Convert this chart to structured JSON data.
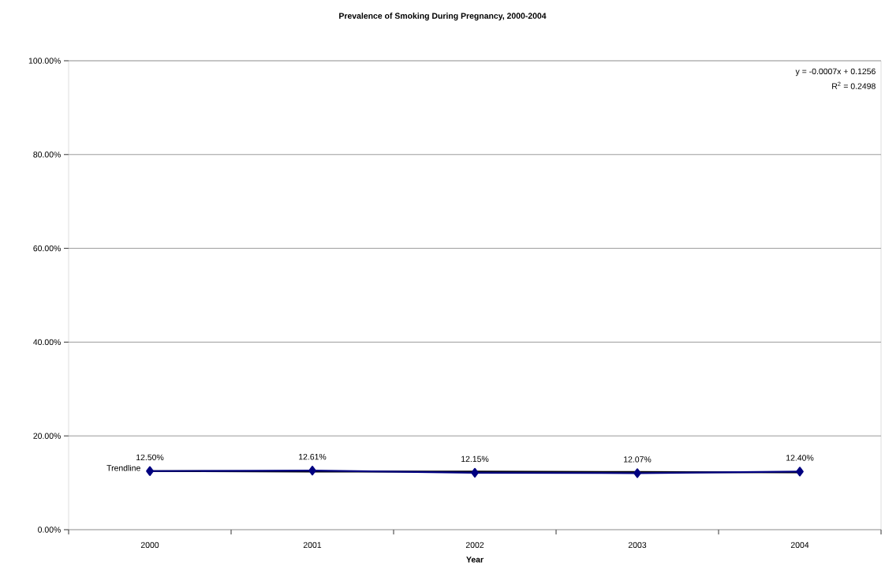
{
  "chart_data": {
    "type": "line",
    "title": "Prevalence of Smoking During Pregnancy, 2000-2004",
    "xlabel": "Year",
    "categories": [
      "2000",
      "2001",
      "2002",
      "2003",
      "2004"
    ],
    "series": [
      {
        "name": "Trendline",
        "color": "#000000",
        "marker": "none",
        "values": [
          12.5,
          12.4,
          12.4,
          12.3,
          12.2
        ]
      },
      {
        "color": "#000080",
        "marker": "diamond",
        "values": [
          12.5,
          12.61,
          12.15,
          12.07,
          12.4
        ],
        "value_labels": [
          "12.50%",
          "12.61%",
          "12.15%",
          "12.07%",
          "12.40%"
        ]
      }
    ],
    "ylim": [
      0,
      100
    ],
    "yticks": [
      {
        "value": 0,
        "label": "0.00%"
      },
      {
        "value": 20,
        "label": "20.00%"
      },
      {
        "value": 40,
        "label": "40.00%"
      },
      {
        "value": 60,
        "label": "60.00%"
      },
      {
        "value": 80,
        "label": "80.00%"
      },
      {
        "value": 100,
        "label": "100.00%"
      }
    ],
    "grid": "y",
    "legend": false,
    "annotations": [
      "y = -0.0007x + 0.1256",
      "R$^{2}$ = 0.2498"
    ]
  }
}
